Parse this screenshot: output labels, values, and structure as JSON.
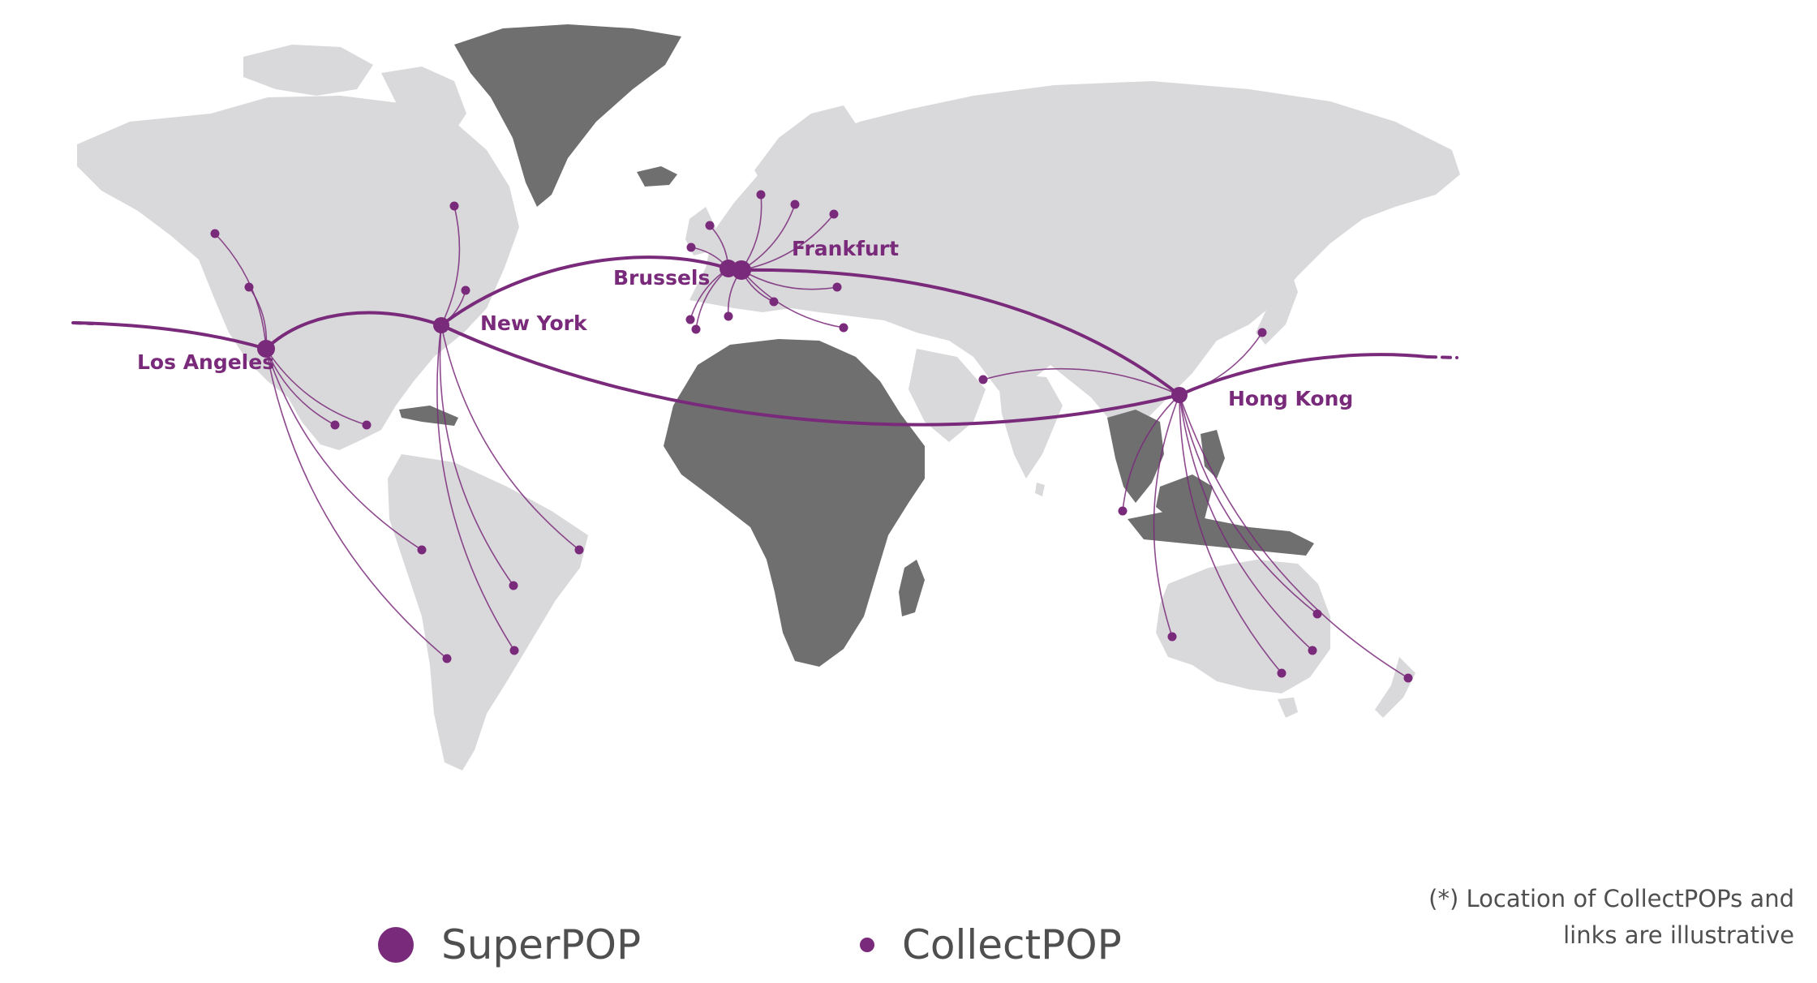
{
  "colors": {
    "accent": "#7a2a7a",
    "land_default": "#d9d9db",
    "land_highlight": "#6f6f70",
    "legend_text": "#4f4f50"
  },
  "map": {
    "highlighted_regions": [
      "Greenland",
      "Africa",
      "Southeast Asia"
    ],
    "superpops": [
      {
        "id": "la",
        "label": "Los Angeles"
      },
      {
        "id": "ny",
        "label": "New York"
      },
      {
        "id": "bru",
        "label": "Brussels"
      },
      {
        "id": "fra",
        "label": "Frankfurt"
      },
      {
        "id": "hk",
        "label": "Hong Kong"
      }
    ]
  },
  "legend": {
    "superpop_label": "SuperPOP",
    "collectpop_label": "CollectPOP"
  },
  "note": {
    "line1": "(*) Location of CollectPOPs and",
    "line2": "links are illustrative"
  }
}
